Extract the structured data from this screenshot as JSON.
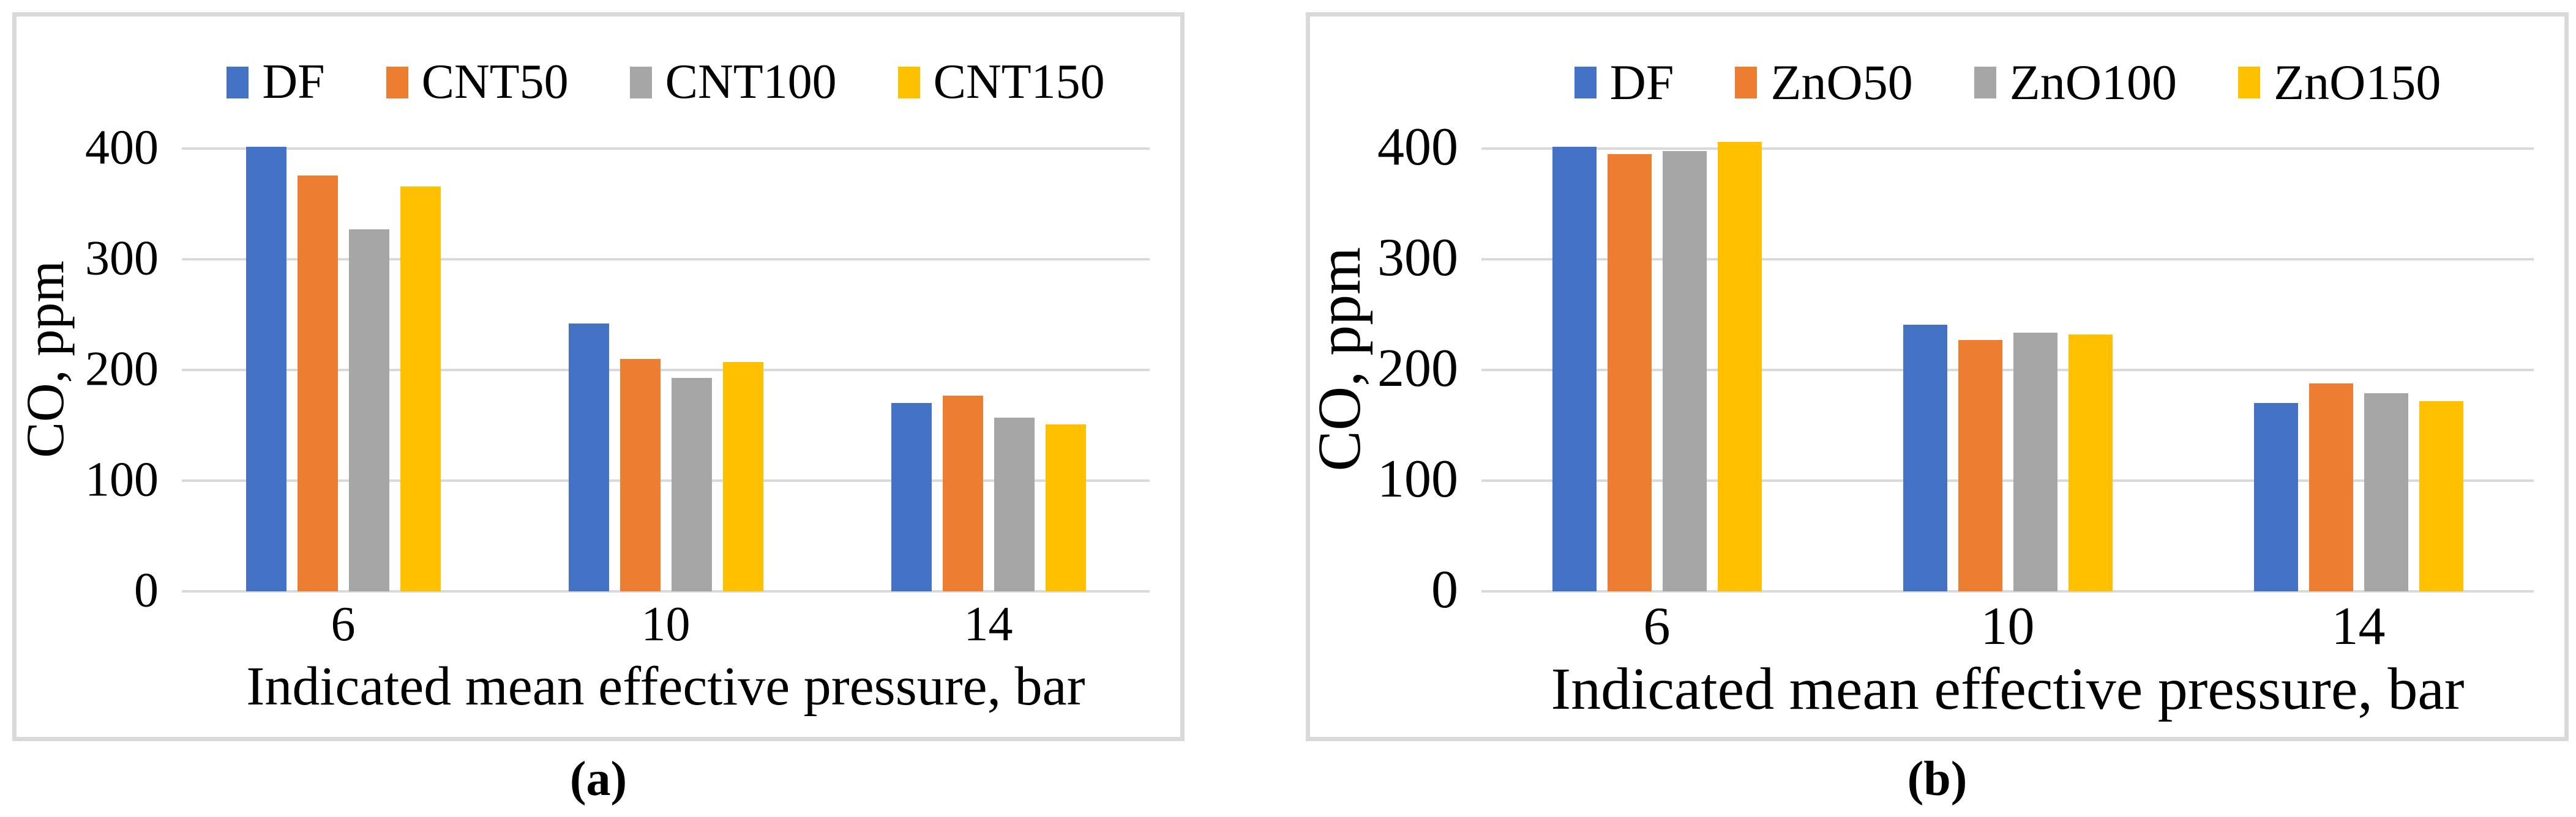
{
  "page": {
    "background": "#FFFFFF"
  },
  "colors": {
    "blue": "#4472C4",
    "orange": "#ED7D31",
    "gray": "#A6A6A6",
    "yellow": "#FFC000",
    "gridline": "#D9D9D9",
    "panel_border": "#D9D9D9"
  },
  "captions": {
    "a": "(a)",
    "b": "(b)"
  },
  "chart_data": [
    {
      "id": "a",
      "type": "bar",
      "title": "",
      "xlabel": "Indicated mean effective pressure, bar",
      "ylabel": "CO, ppm",
      "categories": [
        "6",
        "10",
        "14"
      ],
      "yticks": [
        0,
        100,
        200,
        300,
        400
      ],
      "ylim": [
        0,
        420
      ],
      "grid": true,
      "legend_position": "top",
      "series": [
        {
          "name": "DF",
          "color": "#4472C4",
          "values": [
            402,
            242,
            170
          ]
        },
        {
          "name": "CNT50",
          "color": "#ED7D31",
          "values": [
            376,
            210,
            177
          ]
        },
        {
          "name": "CNT100",
          "color": "#A6A6A6",
          "values": [
            327,
            193,
            157
          ]
        },
        {
          "name": "CNT150",
          "color": "#FFC000",
          "values": [
            366,
            207,
            151
          ]
        }
      ]
    },
    {
      "id": "b",
      "type": "bar",
      "title": "",
      "xlabel": "Indicated mean effective pressure, bar",
      "ylabel": "CO, ppm",
      "categories": [
        "6",
        "10",
        "14"
      ],
      "yticks": [
        0,
        100,
        200,
        300,
        400
      ],
      "ylim": [
        0,
        420
      ],
      "grid": true,
      "legend_position": "top",
      "series": [
        {
          "name": "DF",
          "color": "#4472C4",
          "values": [
            402,
            241,
            170
          ]
        },
        {
          "name": "ZnO50",
          "color": "#ED7D31",
          "values": [
            395,
            227,
            188
          ]
        },
        {
          "name": "ZnO100",
          "color": "#A6A6A6",
          "values": [
            398,
            234,
            179
          ]
        },
        {
          "name": "ZnO150",
          "color": "#FFC000",
          "values": [
            406,
            232,
            172
          ]
        }
      ]
    }
  ]
}
